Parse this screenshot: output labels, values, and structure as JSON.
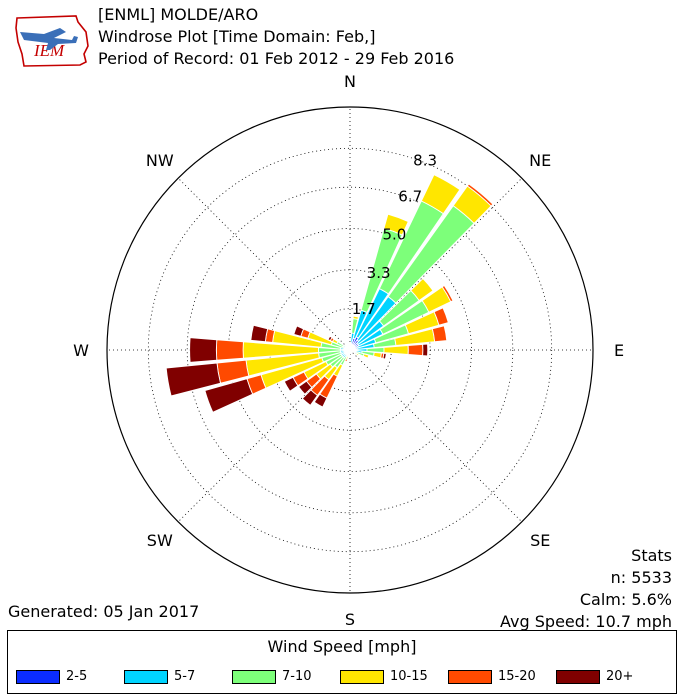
{
  "header": {
    "station_line": "[ENML] MOLDE/ARO",
    "plot_line": "Windrose Plot [Time Domain: Feb,]",
    "period_line": "Period of Record: 01 Feb 2012 - 29 Feb 2016"
  },
  "logo": {
    "text": "IEM"
  },
  "stats": {
    "heading": "Stats",
    "n": "n: 5533",
    "calm": "Calm: 5.6%",
    "avg": "Avg Speed: 10.7 mph"
  },
  "generated": "Generated: 05 Jan 2017",
  "legend": {
    "title": "Wind Speed [mph]",
    "items": [
      {
        "label": "2-5",
        "color": "#0b2cff"
      },
      {
        "label": "5-7",
        "color": "#00d4ff"
      },
      {
        "label": "7-10",
        "color": "#7dff7a"
      },
      {
        "label": "10-15",
        "color": "#ffe600"
      },
      {
        "label": "15-20",
        "color": "#ff4a00"
      },
      {
        "label": "20+",
        "color": "#800000"
      }
    ]
  },
  "chart_data": {
    "type": "windrose",
    "title": "Windrose Plot [Time Domain: Feb,]",
    "direction_labels": [
      "N",
      "NE",
      "E",
      "SE",
      "S",
      "SW",
      "W",
      "NW"
    ],
    "radial_ticks": [
      1.7,
      3.3,
      5.0,
      6.7,
      8.3
    ],
    "rmax": 10,
    "bin_width_deg": 10,
    "speed_bins": [
      "2-5",
      "5-7",
      "7-10",
      "10-15",
      "15-20",
      "20+"
    ],
    "colors": [
      "#0b2cff",
      "#00d4ff",
      "#7dff7a",
      "#ffe600",
      "#ff4a00",
      "#800000"
    ],
    "sectors": [
      {
        "dir": 10,
        "values": [
          0.3,
          0.4,
          0.6,
          0.1,
          0.0,
          0.0
        ]
      },
      {
        "dir": 20,
        "values": [
          0.5,
          1.2,
          3.5,
          0.6,
          0.0,
          0.0
        ]
      },
      {
        "dir": 30,
        "values": [
          0.6,
          2.2,
          4.0,
          1.2,
          0.0,
          0.0
        ]
      },
      {
        "dir": 40,
        "values": [
          0.5,
          2.2,
          4.6,
          1.0,
          0.1,
          0.0
        ]
      },
      {
        "dir": 50,
        "values": [
          0.4,
          1.3,
          1.8,
          0.7,
          0.0,
          0.0
        ]
      },
      {
        "dir": 60,
        "values": [
          0.4,
          1.1,
          2.1,
          1.0,
          0.1,
          0.0
        ]
      },
      {
        "dir": 70,
        "values": [
          0.3,
          0.8,
          1.4,
          1.3,
          0.4,
          0.0
        ]
      },
      {
        "dir": 80,
        "values": [
          0.3,
          0.7,
          0.9,
          1.6,
          0.5,
          0.0
        ]
      },
      {
        "dir": 90,
        "values": [
          0.2,
          0.5,
          0.7,
          1.0,
          0.6,
          0.2
        ]
      },
      {
        "dir": 100,
        "values": [
          0.2,
          0.3,
          0.5,
          0.3,
          0.1,
          0.1
        ]
      },
      {
        "dir": 110,
        "values": [
          0.1,
          0.2,
          0.3,
          0.2,
          0.0,
          0.0
        ]
      },
      {
        "dir": 120,
        "values": [
          0.1,
          0.1,
          0.1,
          0.1,
          0.0,
          0.0
        ]
      },
      {
        "dir": 180,
        "values": [
          0.1,
          0.0,
          0.0,
          0.0,
          0.0,
          0.0
        ]
      },
      {
        "dir": 190,
        "values": [
          0.1,
          0.1,
          0.0,
          0.0,
          0.0,
          0.0
        ]
      },
      {
        "dir": 200,
        "values": [
          0.1,
          0.1,
          0.1,
          0.1,
          0.1,
          0.0
        ]
      },
      {
        "dir": 210,
        "values": [
          0.1,
          0.2,
          0.4,
          0.5,
          1.0,
          0.4
        ]
      },
      {
        "dir": 220,
        "values": [
          0.1,
          0.3,
          0.5,
          0.6,
          0.8,
          0.5
        ]
      },
      {
        "dir": 230,
        "values": [
          0.1,
          0.3,
          0.6,
          0.7,
          0.5,
          0.4
        ]
      },
      {
        "dir": 240,
        "values": [
          0.1,
          0.3,
          0.7,
          1.0,
          0.5,
          0.4
        ]
      },
      {
        "dir": 250,
        "values": [
          0.1,
          0.3,
          0.8,
          2.6,
          0.6,
          1.8
        ]
      },
      {
        "dir": 260,
        "values": [
          0.1,
          0.3,
          0.9,
          3.0,
          1.2,
          2.1
        ]
      },
      {
        "dir": 270,
        "values": [
          0.1,
          0.3,
          0.9,
          3.1,
          1.1,
          1.1
        ]
      },
      {
        "dir": 280,
        "values": [
          0.1,
          0.3,
          0.8,
          2.0,
          0.3,
          0.6
        ]
      },
      {
        "dir": 290,
        "values": [
          0.1,
          0.2,
          0.5,
          1.0,
          0.3,
          0.3
        ]
      },
      {
        "dir": 300,
        "values": [
          0.1,
          0.2,
          0.3,
          0.2,
          0.1,
          0.1
        ]
      },
      {
        "dir": 310,
        "values": [
          0.0,
          0.1,
          0.1,
          0.1,
          0.0,
          0.0
        ]
      },
      {
        "dir": 320,
        "values": [
          0.1,
          0.1,
          0.0,
          0.0,
          0.0,
          0.0
        ]
      },
      {
        "dir": 350,
        "values": [
          0.1,
          0.1,
          0.0,
          0.0,
          0.0,
          0.0
        ]
      }
    ]
  }
}
